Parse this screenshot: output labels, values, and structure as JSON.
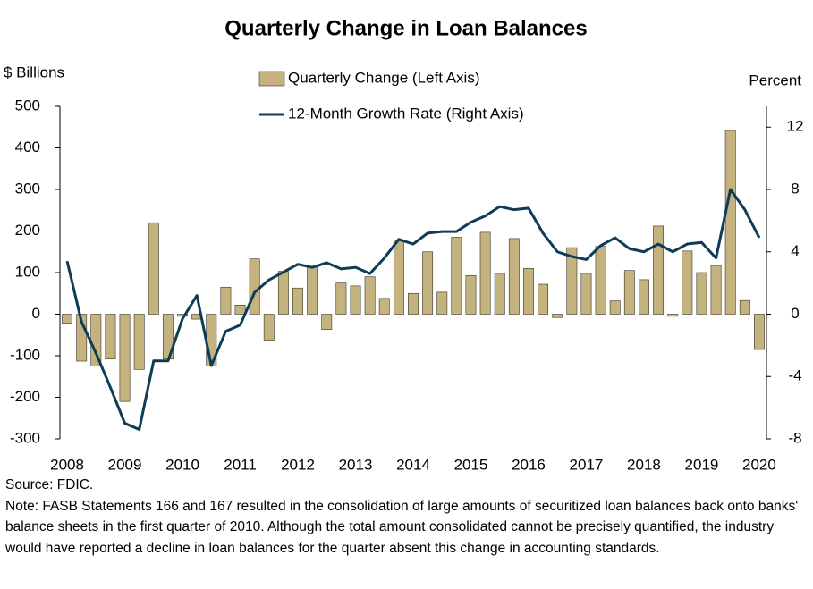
{
  "chart_data": {
    "type": "bar-line",
    "title": "Quarterly Change in Loan Balances",
    "y_label": "$ Billions",
    "y2_label": "Percent",
    "categories": [
      "2008",
      null,
      null,
      null,
      "2009",
      null,
      null,
      null,
      "2010",
      null,
      null,
      null,
      "2011",
      null,
      null,
      null,
      "2012",
      null,
      null,
      null,
      "2013",
      null,
      null,
      null,
      "2014",
      null,
      null,
      null,
      "2015",
      null,
      null,
      null,
      "2016",
      null,
      null,
      null,
      "2017",
      null,
      null,
      null,
      "2018",
      null,
      null,
      null,
      "2019",
      null,
      null,
      null,
      "2020"
    ],
    "series": [
      {
        "name": "Quarterly Change (Left Axis)",
        "type": "bar",
        "axis": "y",
        "color": "#c4b37f",
        "values": [
          -22,
          -113,
          -125,
          -108,
          -210,
          -133,
          220,
          -108,
          -5,
          -12,
          -125,
          65,
          22,
          133,
          -63,
          103,
          63,
          115,
          -37,
          75,
          68,
          90,
          38,
          178,
          50,
          150,
          53,
          185,
          93,
          197,
          98,
          182,
          110,
          72,
          -8,
          160,
          98,
          163,
          32,
          105,
          83,
          212,
          -5,
          152,
          100,
          117,
          442,
          33,
          -85
        ]
      },
      {
        "name": "12-Month Growth Rate (Right Axis)",
        "type": "line",
        "axis": "y2",
        "color": "#0f3c55",
        "values": [
          3.4,
          -0.5,
          -2.5,
          -4.7,
          -7.0,
          -7.4,
          -3.0,
          -3.0,
          -0.3,
          1.2,
          -3.3,
          -1.1,
          -0.7,
          1.4,
          2.2,
          2.7,
          3.2,
          3.0,
          3.3,
          2.9,
          3.0,
          2.6,
          3.6,
          4.8,
          4.5,
          5.2,
          5.3,
          5.3,
          5.9,
          6.3,
          6.9,
          6.7,
          6.8,
          5.2,
          4.0,
          3.7,
          3.5,
          4.4,
          4.9,
          4.2,
          4.0,
          4.5,
          4.0,
          4.5,
          4.6,
          3.6,
          8.0,
          6.7,
          4.9
        ]
      }
    ],
    "ylim": [
      -300,
      500
    ],
    "yticks": [
      -300,
      -200,
      -100,
      0,
      100,
      200,
      300,
      400,
      500
    ],
    "y2lim": [
      -8,
      13.333
    ],
    "y2ticks": [
      -8,
      -4,
      0,
      4,
      8,
      12
    ],
    "grid": false,
    "legend": "upper center",
    "source": "Source: FDIC.",
    "note": "Note: FASB Statements 166 and 167 resulted in the consolidation of large amounts of securitized loan balances back onto banks' balance sheets in the first quarter of 2010.  Although the total amount consolidated cannot be precisely quantified, the industry would have reported a decline in loan balances for the quarter absent this change in accounting standards."
  }
}
